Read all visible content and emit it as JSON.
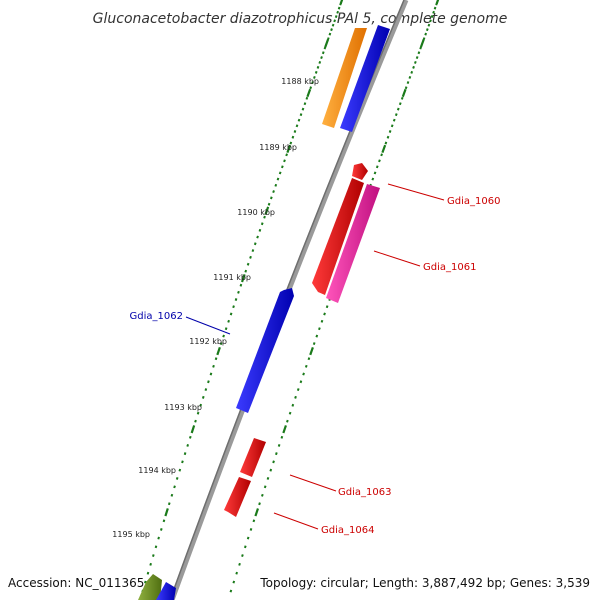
{
  "title": "Gluconacetobacter diazotrophicus PAl 5, complete genome",
  "footer": {
    "accession": "Accession: NC_011365",
    "summary": "Topology: circular; Length: 3,887,492 bp; Genes: 3,539"
  },
  "tick_labels": [
    "1188 kbp",
    "1189 kbp",
    "1190 kbp",
    "1191 kbp",
    "1192 kbp",
    "1193 kbp",
    "1194 kbp",
    "1195 kbp"
  ],
  "gene_labels": [
    {
      "name": "Gdia_1060",
      "color": "#cc0000"
    },
    {
      "name": "Gdia_1061",
      "color": "#cc0000"
    },
    {
      "name": "Gdia_1062",
      "color": "#0000aa"
    },
    {
      "name": "Gdia_1063",
      "color": "#cc0000"
    },
    {
      "name": "Gdia_1064",
      "color": "#cc0000"
    }
  ],
  "colors": {
    "backbone": "#888888",
    "tick_green": "#1a7a1a",
    "orange": "#ff8c00",
    "blue": "#0000ee",
    "red": "#ee0000",
    "pink": "#ee2299",
    "olive": "#6b8e23"
  }
}
